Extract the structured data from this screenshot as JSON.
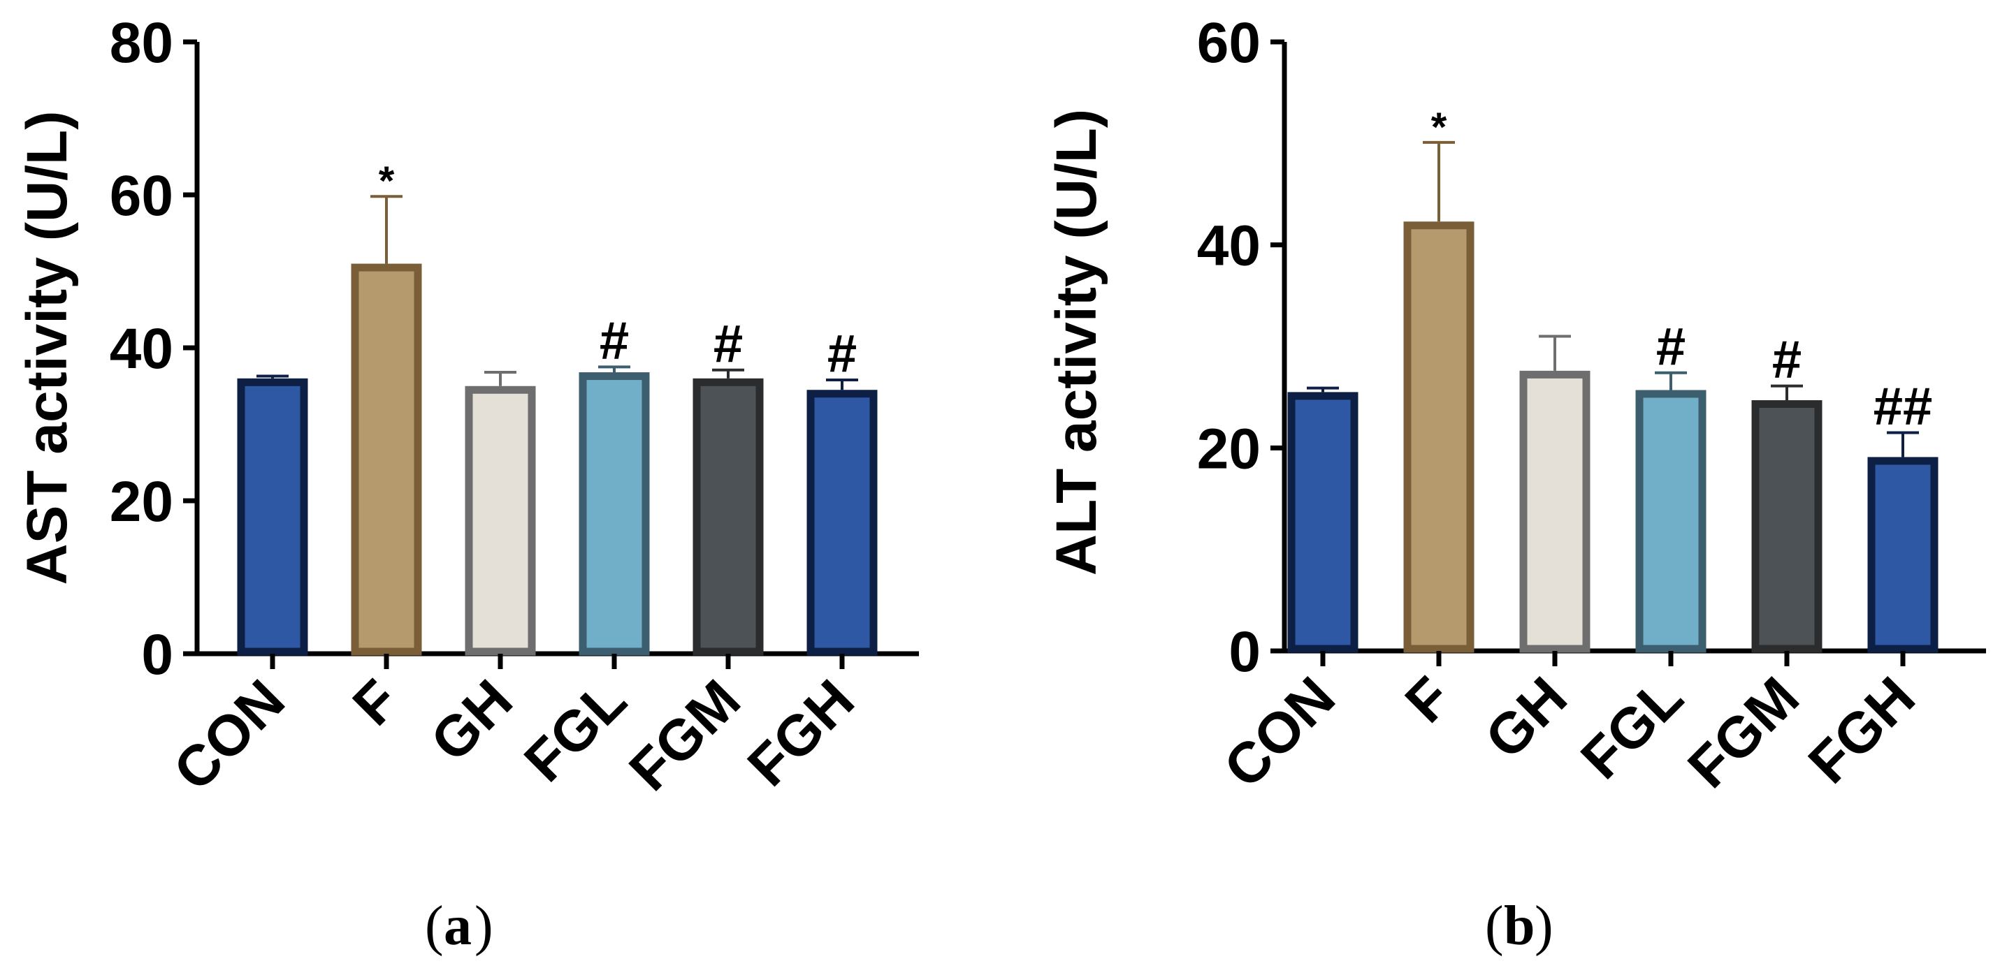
{
  "chart_data": [
    {
      "type": "bar",
      "panel": "a",
      "title": "",
      "xlabel": "",
      "ylabel": "AST activity (U/L)",
      "ylim": [
        0,
        80
      ],
      "yticks": [
        0,
        20,
        40,
        60,
        80
      ],
      "grid": false,
      "categories": [
        "CON",
        "F",
        "GH",
        "FGL",
        "FGM",
        "FGH"
      ],
      "values": [
        36,
        51,
        35,
        36.8,
        36,
        34.5
      ],
      "errors": [
        0.3,
        8.8,
        1.8,
        0.7,
        1.1,
        1.3
      ],
      "annotations": [
        "",
        "*",
        "",
        "#",
        "#",
        "#"
      ],
      "fill_colors": [
        "#2f58a4",
        "#b59a6e",
        "#e4e0d7",
        "#71aec8",
        "#4d5257",
        "#2f58a4"
      ],
      "edge_colors": [
        "#0d1f45",
        "#7a5e38",
        "#6e6e6e",
        "#3c5e6f",
        "#2a2c2e",
        "#0d1f45"
      ],
      "caption_letter": "a"
    },
    {
      "type": "bar",
      "panel": "b",
      "title": "",
      "xlabel": "",
      "ylabel": "ALT activity (U/L)",
      "ylim": [
        0,
        60
      ],
      "yticks": [
        0,
        20,
        40,
        60
      ],
      "grid": false,
      "categories": [
        "CON",
        "F",
        "GH",
        "FGL",
        "FGM",
        "FGH"
      ],
      "values": [
        25.5,
        42.3,
        27.6,
        25.7,
        24.7,
        19.1
      ],
      "errors": [
        0.4,
        7.8,
        3.4,
        1.7,
        1.4,
        2.4
      ],
      "annotations": [
        "",
        "*",
        "",
        "#",
        "#",
        "##"
      ],
      "fill_colors": [
        "#2f58a4",
        "#b59a6e",
        "#e4e0d7",
        "#71aec8",
        "#4d5257",
        "#2f58a4"
      ],
      "edge_colors": [
        "#0d1f45",
        "#7a5e38",
        "#6e6e6e",
        "#3c5e6f",
        "#2a2c2e",
        "#0d1f45"
      ],
      "caption_letter": "b"
    }
  ]
}
